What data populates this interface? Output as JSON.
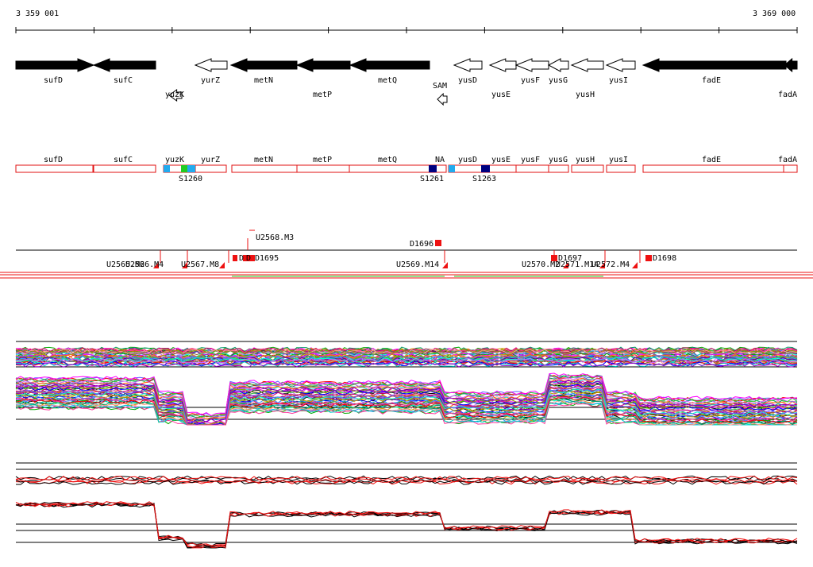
{
  "ruler": {
    "start_label": "3 359 001",
    "end_label": "3 369 000"
  },
  "colors": {
    "gene_filled": "#000000",
    "gene_open": "#ffffff",
    "segment_border": "#e01010",
    "marker_red": "#ee1111",
    "cyan": "#22aaee",
    "green": "#22cc22",
    "navy": "#000080",
    "profile_black": "#000000",
    "profile_red": "#ee1111"
  },
  "genes": [
    {
      "name": "sufD",
      "dir": "right",
      "filled": true,
      "label_row": 1
    },
    {
      "name": "sufC",
      "dir": "left",
      "filled": true,
      "label_row": 1
    },
    {
      "name": "yuzK",
      "dir": "left",
      "filled": false,
      "label_row": 2
    },
    {
      "name": "yurZ",
      "dir": "left",
      "filled": false,
      "label_row": 1
    },
    {
      "name": "metN",
      "dir": "left",
      "filled": true,
      "label_row": 1
    },
    {
      "name": "metP",
      "dir": "left",
      "filled": true,
      "label_row": 2
    },
    {
      "name": "metQ",
      "dir": "left",
      "filled": true,
      "label_row": 1
    },
    {
      "name": "SAM",
      "dir": "left",
      "filled": false,
      "label_row": 1
    },
    {
      "name": "yusD",
      "dir": "left",
      "filled": false,
      "label_row": 1
    },
    {
      "name": "yusE",
      "dir": "left",
      "filled": false,
      "label_row": 2
    },
    {
      "name": "yusF",
      "dir": "left",
      "filled": false,
      "label_row": 1
    },
    {
      "name": "yusG",
      "dir": "left",
      "filled": false,
      "label_row": 1
    },
    {
      "name": "yusH",
      "dir": "left",
      "filled": false,
      "label_row": 2
    },
    {
      "name": "yusI",
      "dir": "left",
      "filled": false,
      "label_row": 1
    },
    {
      "name": "fadE",
      "dir": "left",
      "filled": true,
      "label_row": 1
    },
    {
      "name": "fadA",
      "dir": "left",
      "filled": true,
      "label_row": 2
    }
  ],
  "segments": {
    "labels": [
      "sufD",
      "sufC",
      "yuzK",
      "yurZ",
      "metN",
      "metP",
      "metQ",
      "NA",
      "yusD",
      "yusE",
      "yusF",
      "yusG",
      "yusH",
      "yusI",
      "fadE",
      "fadA"
    ],
    "site_labels": [
      "S1260",
      "S1261",
      "S1263"
    ]
  },
  "upshifts": {
    "labels": [
      "U2568.M3",
      "U2565.M2",
      "U2566.M4",
      "U2567.M8",
      "U2569.M14",
      "U2570.M2",
      "U2571.M14",
      "U2572.M4"
    ],
    "downshifts": [
      "D1695",
      "D1696",
      "D1697",
      "D1698"
    ],
    "extra_labels": [
      "D",
      "D"
    ]
  },
  "profiles": {
    "upper_panel": "expression",
    "lower_panel": "expression"
  }
}
